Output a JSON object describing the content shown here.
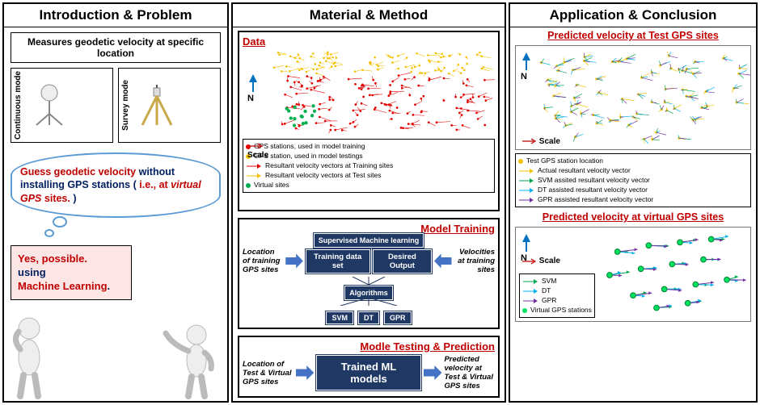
{
  "col1": {
    "title": "Introduction & Problem",
    "measures": "Measures geodetic velocity at specific location",
    "mode_cont": "Continuous mode",
    "mode_surv": "Survey mode",
    "thought_l1": "Guess geodetic velocity",
    "thought_l2": " without installing GPS stations (",
    "thought_l3": "i.e., at ",
    "thought_l4": "virtual GPS",
    "thought_l5": " sites.",
    "thought_l6": ")",
    "yes1": "Yes, possible.",
    "yes2": "using",
    "yes3": "Machine Learning",
    "yes4": "."
  },
  "col2": {
    "title": "Material & Method",
    "data_label": "Data",
    "n_label": "N",
    "scale": "Scale",
    "legend": [
      {
        "kind": "dot",
        "color": "#e30000",
        "text": "GPS stations, used in model training"
      },
      {
        "kind": "dot",
        "color": "#f2c200",
        "text": "GPS station, used in model testings"
      },
      {
        "kind": "arrow",
        "color": "#e30000",
        "text": "Resultant velocity vectors at Training sites"
      },
      {
        "kind": "arrow",
        "color": "#f2c200",
        "text": "Resultant velocity vectors at Test sites"
      },
      {
        "kind": "dot",
        "color": "#00b050",
        "text": "Virtual sites"
      }
    ],
    "train_title": "Model Training",
    "train_left": "Location of training GPS sites",
    "train_right": "Velocities at training sites",
    "box_sup": "Supervised Machine learning",
    "box_train": "Training data set",
    "box_out": "Desired Output",
    "box_algo": "Algorithms",
    "algos": [
      "SVM",
      "DT",
      "GPR"
    ],
    "test_title": "Modle Testing & Prediction",
    "test_left": "Location of Test & Virtual GPS sites",
    "test_box": "Trained ML models",
    "test_right": "Predicted velocity at Test & Virtual GPS sites"
  },
  "col3": {
    "title": "Application & Conclusion",
    "sec1": "Predicted velocity at Test GPS sites",
    "sec2": "Predicted velocity at virtual GPS sites",
    "n_label": "N",
    "scale": "Scale",
    "legend1": [
      {
        "kind": "dot",
        "color": "#f2c200",
        "text": "Test GPS station location"
      },
      {
        "kind": "arrow",
        "color": "#f2c200",
        "text": "Actual resultant velocity vector"
      },
      {
        "kind": "arrow",
        "color": "#00a651",
        "text": "SVM assited resultant velocity vector"
      },
      {
        "kind": "arrow",
        "color": "#00b0f0",
        "text": "DT assisted resultant velocity vector"
      },
      {
        "kind": "arrow",
        "color": "#7030a0",
        "text": "GPR assisted resultant velocity vector"
      }
    ],
    "legend2": [
      {
        "kind": "arrow",
        "color": "#00a651",
        "text": "SVM"
      },
      {
        "kind": "arrow",
        "color": "#00b0f0",
        "text": "DT"
      },
      {
        "kind": "arrow",
        "color": "#7030a0",
        "text": "GPR"
      },
      {
        "kind": "dot",
        "color": "#00e060",
        "text": "Virtual GPS stations"
      }
    ]
  },
  "colors": {
    "red": "#c00000",
    "navy": "#002060",
    "crimson": "#b00000",
    "accent": "#1f3864"
  }
}
